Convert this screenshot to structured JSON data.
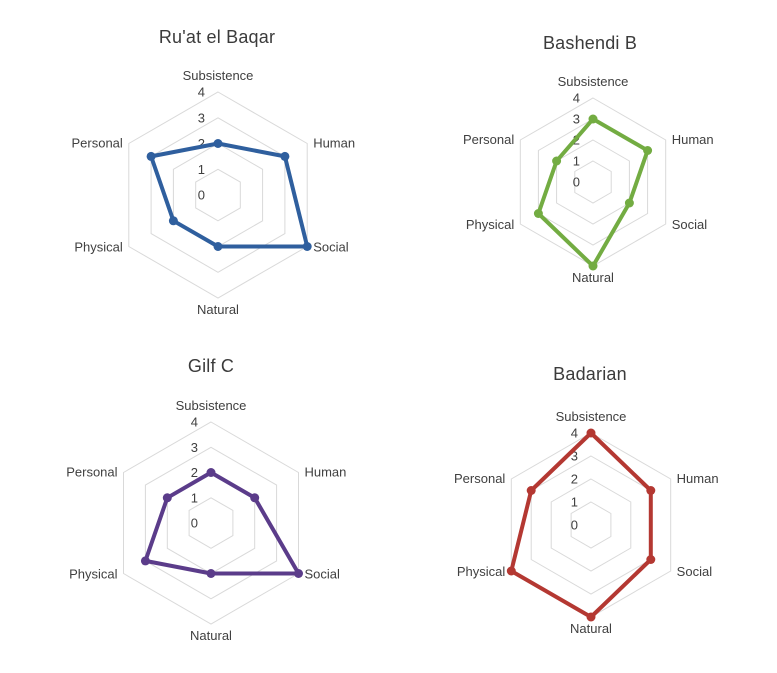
{
  "background": "#FFFFFF",
  "grid_color": "#D9D9D9",
  "title_color": "#3B3B3B",
  "label_color": "#404040",
  "chart_data": [
    {
      "type": "radar",
      "title": "Ru'at el Baqar",
      "color": "#2F5F9E",
      "categories": [
        "Subsistence",
        "Human",
        "Social",
        "Natural",
        "Physical",
        "Personal"
      ],
      "values": [
        2,
        3,
        4,
        2,
        2,
        3
      ],
      "r_ticks": [
        "4",
        "3",
        "2",
        "1",
        "0"
      ],
      "rlim": [
        0,
        4
      ],
      "grid": true,
      "legend": "none"
    },
    {
      "type": "radar",
      "title": "Bashendi B",
      "color": "#73AC42",
      "categories": [
        "Subsistence",
        "Human",
        "Social",
        "Natural",
        "Physical",
        "Personal"
      ],
      "values": [
        3,
        3,
        2,
        4,
        3,
        2
      ],
      "r_ticks": [
        "4",
        "3",
        "2",
        "1",
        "0"
      ],
      "rlim": [
        0,
        4
      ],
      "grid": true,
      "legend": "none"
    },
    {
      "type": "radar",
      "title": "Gilf C",
      "color": "#5B3C8A",
      "categories": [
        "Subsistence",
        "Human",
        "Social",
        "Natural",
        "Physical",
        "Personal"
      ],
      "values": [
        2,
        2,
        4,
        2,
        3,
        2
      ],
      "r_ticks": [
        "4",
        "3",
        "2",
        "1",
        "0"
      ],
      "rlim": [
        0,
        4
      ],
      "grid": true,
      "legend": "none"
    },
    {
      "type": "radar",
      "title": "Badarian",
      "color": "#B43832",
      "categories": [
        "Subsistence",
        "Human",
        "Social",
        "Natural",
        "Physical",
        "Personal"
      ],
      "values": [
        4,
        3,
        3,
        4,
        4,
        3
      ],
      "r_ticks": [
        "4",
        "3",
        "2",
        "1",
        "0"
      ],
      "rlim": [
        0,
        4
      ],
      "grid": true,
      "legend": "none"
    }
  ]
}
